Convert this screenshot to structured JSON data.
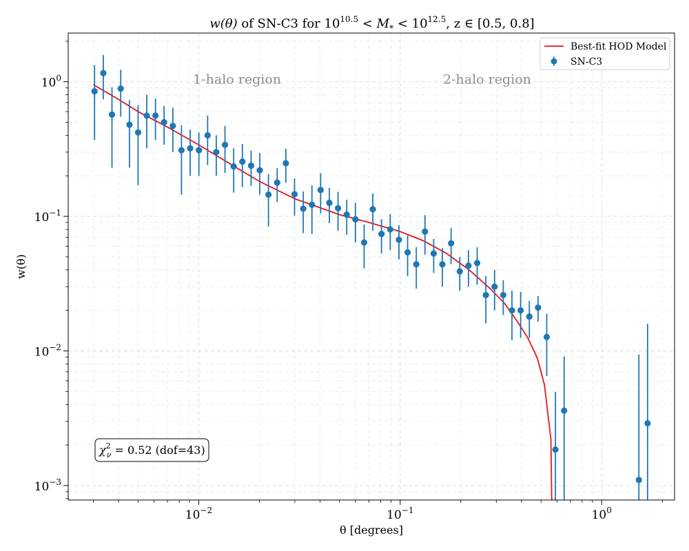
{
  "chart_data": {
    "type": "scatter",
    "title_parts": [
      "w(θ)",
      " of SN-C3 for ",
      "10",
      "10.5",
      " < M",
      "*",
      " < 10",
      "12.5",
      ", z ∈ [0.5, 0.8]"
    ],
    "xlabel": "θ [degrees]",
    "ylabel": "w(θ)",
    "xscale": "log",
    "yscale": "log",
    "xlim": [
      0.00225,
      2.3
    ],
    "ylim": [
      0.00078,
      2.3
    ],
    "x_ticks": [
      {
        "value": 0.01,
        "base": "10",
        "exp": "−2"
      },
      {
        "value": 0.1,
        "base": "10",
        "exp": "−1"
      },
      {
        "value": 1,
        "base": "10",
        "exp": "0"
      }
    ],
    "y_ticks": [
      {
        "value": 0.001,
        "base": "10",
        "exp": "−3"
      },
      {
        "value": 0.01,
        "base": "10",
        "exp": "−2"
      },
      {
        "value": 0.1,
        "base": "10",
        "exp": "−1"
      },
      {
        "value": 1,
        "base": "10",
        "exp": "0"
      }
    ],
    "grid": true,
    "legend_position": "top-right",
    "series": [
      {
        "name": "SN-C3",
        "kind": "errorbar",
        "color": "#1f77b4",
        "x": [
          0.00304,
          0.00336,
          0.00371,
          0.0041,
          0.00453,
          0.005,
          0.00552,
          0.0061,
          0.00673,
          0.00744,
          0.00821,
          0.00907,
          0.01002,
          0.01107,
          0.01222,
          0.0135,
          0.01491,
          0.01647,
          0.01819,
          0.02009,
          0.02219,
          0.02451,
          0.02707,
          0.0299,
          0.03302,
          0.03647,
          0.04028,
          0.04449,
          0.04914,
          0.05428,
          0.05995,
          0.06621,
          0.07313,
          0.08077,
          0.08922,
          0.09854,
          0.10884,
          0.12021,
          0.13277,
          0.14664,
          0.16197,
          0.1789,
          0.19759,
          0.21823,
          0.24104,
          0.26622,
          0.29404,
          0.32477,
          0.3587,
          0.39618,
          0.43759,
          0.48331,
          0.53381,
          0.5896,
          0.6512,
          1.53,
          1.69
        ],
        "y": [
          0.85,
          1.16,
          0.57,
          0.89,
          0.48,
          0.42,
          0.56,
          0.56,
          0.5,
          0.47,
          0.31,
          0.32,
          0.31,
          0.4,
          0.3,
          0.34,
          0.235,
          0.255,
          0.238,
          0.22,
          0.145,
          0.178,
          0.248,
          0.146,
          0.114,
          0.122,
          0.157,
          0.126,
          0.115,
          0.103,
          0.095,
          0.064,
          0.113,
          0.074,
          0.08,
          0.067,
          0.054,
          0.044,
          0.077,
          0.053,
          0.044,
          0.063,
          0.039,
          0.043,
          0.045,
          0.026,
          0.03,
          0.026,
          0.02,
          0.02,
          0.018,
          0.021,
          0.0127,
          0.00185,
          0.0036,
          0.0011,
          0.0029
        ],
        "yerr_low": [
          0.48,
          0.42,
          0.34,
          0.34,
          0.25,
          0.25,
          0.24,
          0.19,
          0.16,
          0.17,
          0.165,
          0.12,
          0.11,
          0.16,
          0.1,
          0.13,
          0.085,
          0.09,
          0.07,
          0.075,
          0.061,
          0.05,
          0.07,
          0.045,
          0.039,
          0.048,
          0.052,
          0.037,
          0.037,
          0.03,
          0.031,
          0.023,
          0.035,
          0.021,
          0.024,
          0.019,
          0.018,
          0.015,
          0.025,
          0.015,
          0.014,
          0.019,
          0.011,
          0.013,
          0.014,
          0.01,
          0.01,
          0.0075,
          0.008,
          0.0075,
          0.0055,
          0.0045,
          0.0062,
          0.00185,
          0.0036,
          0.0011,
          0.0029
        ],
        "yerr_high": [
          0.48,
          0.42,
          0.34,
          0.34,
          0.25,
          0.25,
          0.24,
          0.19,
          0.16,
          0.17,
          0.165,
          0.12,
          0.11,
          0.16,
          0.1,
          0.13,
          0.085,
          0.09,
          0.07,
          0.075,
          0.061,
          0.05,
          0.07,
          0.045,
          0.039,
          0.048,
          0.052,
          0.037,
          0.037,
          0.03,
          0.031,
          0.023,
          0.035,
          0.021,
          0.024,
          0.019,
          0.018,
          0.015,
          0.025,
          0.015,
          0.014,
          0.019,
          0.011,
          0.013,
          0.014,
          0.01,
          0.01,
          0.0075,
          0.008,
          0.0075,
          0.0055,
          0.0045,
          0.0062,
          0.0031,
          0.0055,
          0.0083,
          0.013
        ]
      },
      {
        "name": "Best-fit HOD Model",
        "kind": "line",
        "color": "#e8141c",
        "x": [
          0.003,
          0.004,
          0.005,
          0.007,
          0.01,
          0.015,
          0.02,
          0.03,
          0.05,
          0.07,
          0.1,
          0.13,
          0.17,
          0.22,
          0.28,
          0.33,
          0.38,
          0.43,
          0.48,
          0.52,
          0.56,
          0.565
        ],
        "y": [
          0.95,
          0.74,
          0.6,
          0.46,
          0.34,
          0.235,
          0.182,
          0.135,
          0.103,
          0.09,
          0.077,
          0.066,
          0.053,
          0.04,
          0.029,
          0.0225,
          0.0167,
          0.0125,
          0.0088,
          0.0056,
          0.0022,
          0.0002
        ]
      }
    ],
    "annotations": [
      {
        "text": "1-halo region",
        "x": 0.0155,
        "y": 1.05
      },
      {
        "text": "2-halo region",
        "x": 0.27,
        "y": 1.05
      }
    ],
    "stat_box": {
      "chi_symbol": "χ",
      "sup": "2",
      "sub": "ν",
      "text": " = 0.52 (dof=43)"
    }
  }
}
